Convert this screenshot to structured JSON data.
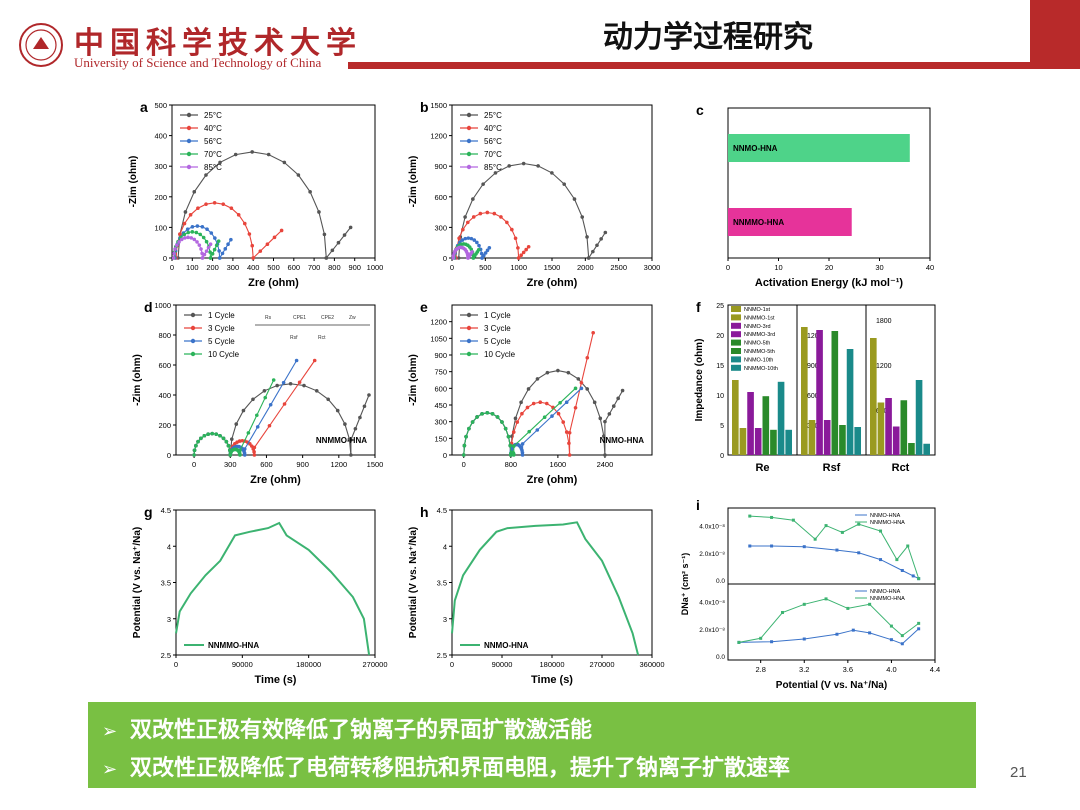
{
  "header": {
    "logo_cn": "中国科学技术大学",
    "logo_en": "University of Science and Technology of China",
    "title": "动力学过程研究"
  },
  "summary": {
    "bullets": [
      "双改性正极有效降低了钠离子的界面扩散激活能",
      "双改性正极降低了电荷转移阻抗和界面电阻，提升了钠离子扩散速率"
    ],
    "bullet_glyph": "➢"
  },
  "page_number": "21",
  "colors": {
    "accent_red": "#b82a2a",
    "summary_bg": "#79c043",
    "green": "#3cb371",
    "teal_bar": "#4ed389",
    "pink_bar": "#e6339a"
  },
  "chart_data": [
    {
      "panel": "a",
      "type": "scatter",
      "xlabel": "Zre (ohm)",
      "ylabel": "-Zim (ohm)",
      "xlim": [
        0,
        1000
      ],
      "ylim": [
        0,
        500
      ],
      "xticks": [
        0,
        100,
        200,
        300,
        400,
        500,
        600,
        700,
        800,
        900,
        1000
      ],
      "yticks": [
        0,
        100,
        200,
        300,
        400,
        500
      ],
      "series": [
        {
          "name": "25°C",
          "color": "#555555",
          "semi": [
            [
              30,
              760
            ]
          ],
          "tail": [
            [
              760,
              0
            ],
            [
              880,
              100
            ]
          ]
        },
        {
          "name": "40°C",
          "color": "#e8453c",
          "semi": [
            [
              20,
              400
            ]
          ],
          "tail": [
            [
              400,
              0
            ],
            [
              540,
              90
            ]
          ]
        },
        {
          "name": "56°C",
          "color": "#3b73c9",
          "semi": [
            [
              15,
              235
            ]
          ],
          "tail": [
            [
              235,
              0
            ],
            [
              290,
              60
            ]
          ]
        },
        {
          "name": "70°C",
          "color": "#2bb35a",
          "semi": [
            [
              10,
              190
            ]
          ],
          "tail": [
            [
              190,
              0
            ],
            [
              230,
              55
            ]
          ]
        },
        {
          "name": "85°C",
          "color": "#b368e0",
          "semi": [
            [
              8,
              150
            ]
          ],
          "tail": [
            [
              150,
              0
            ],
            [
              190,
              45
            ]
          ]
        }
      ]
    },
    {
      "panel": "b",
      "type": "scatter",
      "xlabel": "Zre (ohm)",
      "ylabel": "-Zim (ohm)",
      "xlim": [
        0,
        3000
      ],
      "ylim": [
        0,
        1500
      ],
      "xticks": [
        0,
        500,
        1000,
        1500,
        2000,
        2500,
        3000
      ],
      "yticks": [
        0,
        300,
        600,
        900,
        1200,
        1500
      ],
      "series": [
        {
          "name": "25°C",
          "color": "#555555",
          "semi": [
            [
              100,
              2050
            ]
          ],
          "tail": [
            [
              2050,
              0
            ],
            [
              2300,
              250
            ]
          ]
        },
        {
          "name": "40°C",
          "color": "#e8453c",
          "semi": [
            [
              60,
              1000
            ]
          ],
          "tail": [
            [
              1000,
              0
            ],
            [
              1150,
              110
            ]
          ]
        },
        {
          "name": "56°C",
          "color": "#3b73c9",
          "semi": [
            [
              40,
              450
            ]
          ],
          "tail": [
            [
              450,
              0
            ],
            [
              560,
              100
            ]
          ]
        },
        {
          "name": "70°C",
          "color": "#2bb35a",
          "semi": [
            [
              30,
              320
            ]
          ],
          "tail": [
            [
              320,
              0
            ],
            [
              400,
              80
            ]
          ]
        },
        {
          "name": "85°C",
          "color": "#b368e0",
          "semi": [
            [
              20,
              240
            ]
          ],
          "tail": [
            [
              240,
              0
            ],
            [
              300,
              60
            ]
          ]
        }
      ]
    },
    {
      "panel": "c",
      "type": "bar",
      "orientation": "horizontal",
      "xlabel": "Activation Energy (kJ mol⁻¹)",
      "xlim": [
        0,
        40
      ],
      "xticks": [
        0,
        10,
        20,
        30,
        40
      ],
      "categories": [
        "NNMO-HNA",
        "NNMMO-HNA"
      ],
      "values": [
        36,
        24.5
      ],
      "colors": [
        "#4ed389",
        "#e6339a"
      ]
    },
    {
      "panel": "d",
      "type": "scatter",
      "annotation": "NNMMO-HNA",
      "circuit_labels": [
        "Rs",
        "CPE1",
        "CPE2",
        "Zw",
        "Rsf",
        "Rct"
      ],
      "xlabel": "Zre (ohm)",
      "ylabel": "-Zim (ohm)",
      "xlim": [
        -150,
        1500
      ],
      "ylim": [
        0,
        1000
      ],
      "xticks": [
        0,
        300,
        600,
        900,
        1200,
        1500
      ],
      "yticks": [
        0,
        200,
        400,
        600,
        800,
        1000
      ],
      "series": [
        {
          "name": "1 Cycle",
          "color": "#555555",
          "semi": [
            [
              0,
              300
            ],
            [
              300,
              1300
            ]
          ],
          "tail": [
            [
              1300,
              100
            ],
            [
              1450,
              400
            ]
          ]
        },
        {
          "name": "3 Cycle",
          "color": "#e8453c",
          "semi": [
            [
              0,
              300
            ],
            [
              300,
              500
            ]
          ],
          "tail": [
            [
              500,
              50
            ],
            [
              1000,
              630
            ]
          ]
        },
        {
          "name": "5 Cycle",
          "color": "#3b73c9",
          "semi": [
            [
              0,
              300
            ],
            [
              300,
              420
            ]
          ],
          "tail": [
            [
              420,
              40
            ],
            [
              850,
              630
            ]
          ]
        },
        {
          "name": "10 Cycle",
          "color": "#2bb35a",
          "semi": [
            [
              0,
              300
            ],
            [
              300,
              380
            ]
          ],
          "tail": [
            [
              380,
              30
            ],
            [
              660,
              500
            ]
          ]
        }
      ]
    },
    {
      "panel": "e",
      "type": "scatter",
      "annotation": "NNMO-HNA",
      "xlabel": "Zre (ohm)",
      "ylabel": "-Zim (ohm)",
      "xlim": [
        -200,
        3200
      ],
      "ylim": [
        0,
        1350
      ],
      "xticks": [
        0,
        800,
        1600,
        2400
      ],
      "yticks": [
        0,
        150,
        300,
        450,
        600,
        750,
        900,
        1050,
        1200
      ],
      "series": [
        {
          "name": "1 Cycle",
          "color": "#555555",
          "semi": [
            [
              0,
              800
            ],
            [
              800,
              2400
            ]
          ],
          "tail": [
            [
              2400,
              300
            ],
            [
              2700,
              580
            ]
          ]
        },
        {
          "name": "3 Cycle",
          "color": "#e8453c",
          "semi": [
            [
              0,
              800
            ],
            [
              800,
              1800
            ]
          ],
          "tail": [
            [
              1800,
              200
            ],
            [
              2200,
              1100
            ]
          ]
        },
        {
          "name": "5 Cycle",
          "color": "#3b73c9",
          "semi": [
            [
              0,
              800
            ],
            [
              800,
              1000
            ]
          ],
          "tail": [
            [
              1000,
              100
            ],
            [
              2000,
              600
            ]
          ]
        },
        {
          "name": "10 Cycle",
          "color": "#2bb35a",
          "semi": [
            [
              0,
              800
            ],
            [
              800,
              850
            ]
          ],
          "tail": [
            [
              850,
              80
            ],
            [
              1900,
              600
            ]
          ]
        }
      ]
    },
    {
      "panel": "f",
      "type": "bar",
      "ylabel": "Impedance (ohm)",
      "groups": [
        "Re",
        "Rsf",
        "Rct"
      ],
      "legend": [
        "NNMO-1st",
        "NNMMO-1st",
        "NNMO-3rd",
        "NNMMO-3rd",
        "NNMO-5th",
        "NNMMO-5th",
        "NNMO-10th",
        "NNMMO-10th"
      ],
      "colors": [
        "#9a9a20",
        "#9a9a20",
        "#8a1a9a",
        "#8a1a9a",
        "#2a8a2a",
        "#2a8a2a",
        "#1a8a8a",
        "#1a8a8a"
      ],
      "axes": [
        {
          "ylim": [
            0,
            25
          ],
          "yticks": [
            0,
            5,
            10,
            15,
            20,
            25
          ]
        },
        {
          "ylim": [
            0,
            1500
          ],
          "yticks": [
            300,
            600,
            900,
            1200
          ]
        },
        {
          "ylim": [
            0,
            2000
          ],
          "yticks": [
            600,
            1200,
            1800
          ]
        }
      ],
      "values": [
        [
          12.5,
          4.5,
          10.5,
          4.5,
          9.8,
          4.2,
          12.2,
          4.2
        ],
        [
          1280,
          350,
          1250,
          350,
          1240,
          300,
          1060,
          280
        ],
        [
          1560,
          700,
          760,
          380,
          730,
          160,
          1000,
          150
        ]
      ]
    },
    {
      "panel": "g",
      "type": "line",
      "legend": "NNMMO-HNA",
      "xlabel": "Time (s)",
      "ylabel": "Potential (V vs. Na⁺/Na)",
      "xlim": [
        0,
        270000
      ],
      "ylim": [
        2.5,
        4.5
      ],
      "xticks": [
        0,
        90000,
        180000,
        270000
      ],
      "yticks": [
        2.5,
        3.0,
        3.5,
        4.0,
        4.5
      ],
      "x": [
        0,
        5000,
        20000,
        40000,
        60000,
        80000,
        100000,
        125000,
        140000,
        150000,
        180000,
        210000,
        240000,
        255000,
        262000
      ],
      "y": [
        2.8,
        3.1,
        3.35,
        3.6,
        3.8,
        4.15,
        4.2,
        4.25,
        4.32,
        4.15,
        3.95,
        3.65,
        3.3,
        3.0,
        2.5
      ]
    },
    {
      "panel": "h",
      "type": "line",
      "legend": "NNMO-HNA",
      "xlabel": "Time (s)",
      "ylabel": "Potential (V vs. Na⁺/Na)",
      "xlim": [
        0,
        360000
      ],
      "ylim": [
        2.5,
        4.5
      ],
      "xticks": [
        0,
        90000,
        180000,
        270000,
        360000
      ],
      "yticks": [
        2.5,
        3.0,
        3.5,
        4.0,
        4.5
      ],
      "x": [
        0,
        5000,
        20000,
        50000,
        80000,
        100000,
        150000,
        200000,
        225000,
        240000,
        270000,
        300000,
        325000,
        335000
      ],
      "y": [
        2.8,
        3.25,
        3.6,
        3.95,
        4.2,
        4.25,
        4.28,
        4.3,
        4.33,
        4.1,
        3.8,
        3.3,
        2.8,
        2.5
      ]
    },
    {
      "panel": "i",
      "type": "scatter",
      "xlabel": "Potential (V vs. Na⁺/Na)",
      "ylabel": "DNa⁺ (cm² s⁻¹)",
      "xlim": [
        2.5,
        4.4
      ],
      "xticks": [
        2.8,
        3.2,
        3.6,
        4.0,
        4.4
      ],
      "subplots": [
        {
          "ylim": [
            0,
            5e-08
          ],
          "ytick_labels": [
            "0.0",
            "2.0x10⁻⁸",
            "4.0x10⁻⁸"
          ],
          "yticks": [
            0,
            2e-08,
            4e-08
          ],
          "series": [
            {
              "name": "NNMO-HNA",
              "color": "#3b73c9",
              "x": [
                2.7,
                2.9,
                3.2,
                3.5,
                3.7,
                3.9,
                4.1,
                4.2,
                4.25
              ],
              "y": [
                2.5e-08,
                2.5e-08,
                2.45e-08,
                2.2e-08,
                2e-08,
                1.5e-08,
                7e-09,
                3e-09,
                1e-09
              ]
            },
            {
              "name": "NNMMO-HNA",
              "color": "#3cb371",
              "x": [
                2.7,
                2.9,
                3.1,
                3.3,
                3.4,
                3.55,
                3.7,
                3.9,
                4.05,
                4.15,
                4.25
              ],
              "y": [
                4.7e-08,
                4.6e-08,
                4.4e-08,
                3e-08,
                4e-08,
                3.5e-08,
                4.1e-08,
                3.6e-08,
                1.5e-08,
                2.5e-08,
                1e-09
              ]
            }
          ]
        },
        {
          "ylim": [
            0,
            5e-08
          ],
          "ytick_labels": [
            "0.0",
            "2.0x10⁻⁸",
            "4.0x10⁻⁸"
          ],
          "yticks": [
            0,
            2e-08,
            4e-08
          ],
          "series": [
            {
              "name": "NNMO-HNA",
              "color": "#3b73c9",
              "x": [
                2.6,
                2.9,
                3.2,
                3.5,
                3.65,
                3.8,
                4.0,
                4.1,
                4.25
              ],
              "y": [
                1e-08,
                1.05e-08,
                1.25e-08,
                1.6e-08,
                1.9e-08,
                1.7e-08,
                1.2e-08,
                9e-09,
                2e-08
              ]
            },
            {
              "name": "NNMMO-HNA",
              "color": "#3cb371",
              "x": [
                2.6,
                2.8,
                3.0,
                3.2,
                3.4,
                3.6,
                3.8,
                4.0,
                4.1,
                4.25
              ],
              "y": [
                1e-08,
                1.3e-08,
                3.2e-08,
                3.8e-08,
                4.2e-08,
                3.5e-08,
                3.8e-08,
                2.2e-08,
                1.5e-08,
                2.4e-08
              ]
            }
          ]
        }
      ]
    }
  ]
}
